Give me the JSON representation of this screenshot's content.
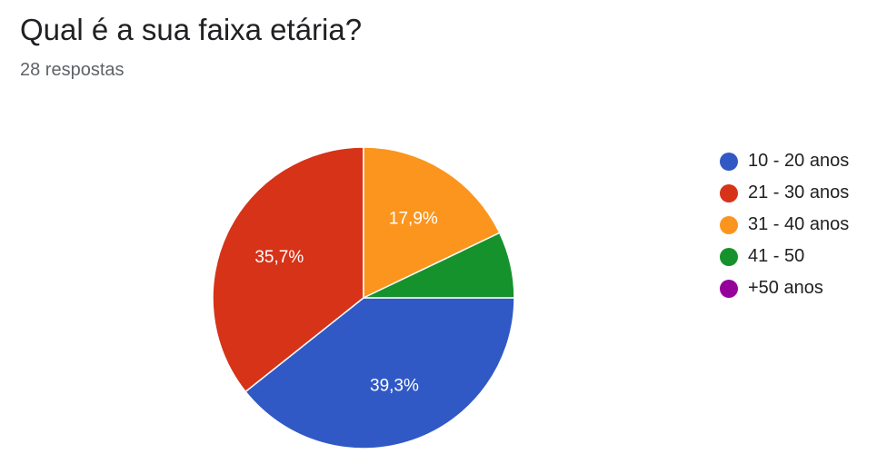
{
  "header": {
    "title": "Qual é a sua faixa etária?",
    "responses": "28 respostas"
  },
  "chart_data": {
    "type": "pie",
    "categories": [
      "10 - 20 anos",
      "21 - 30 anos",
      "31 - 40 anos",
      "41 - 50",
      "+50 anos"
    ],
    "values": [
      39.3,
      35.7,
      17.9,
      7.1,
      0
    ],
    "data_labels": [
      "39,3%",
      "35,7%",
      "17,9%",
      "",
      ""
    ],
    "colors": [
      "#3059c5",
      "#d63318",
      "#fb951d",
      "#16922c",
      "#96009a"
    ],
    "legend": "right",
    "start_angle": "3 o'clock, clockwise"
  }
}
